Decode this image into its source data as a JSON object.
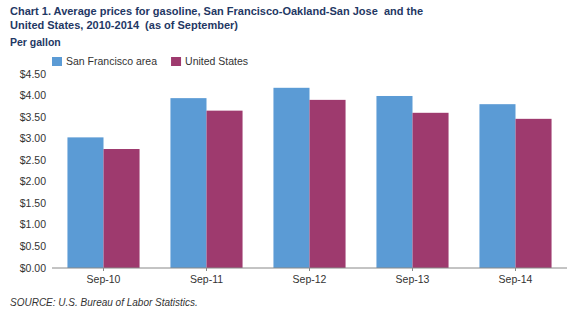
{
  "chart_data": {
    "type": "bar",
    "title": "Chart 1. Average prices for gasoline, San Francisco-Oakland-San Jose  and the",
    "subtitle": "United States, 2010-2014  (as of September)",
    "ylabel": "Per gallon",
    "source": "SOURCE: U.S. Bureau of Labor Statistics.",
    "categories": [
      "Sep-10",
      "Sep-11",
      "Sep-12",
      "Sep-13",
      "Sep-14"
    ],
    "series": [
      {
        "name": "San Francisco area",
        "color": "#5B9BD5",
        "values": [
          3.03,
          3.94,
          4.18,
          3.99,
          3.8
        ]
      },
      {
        "name": "United States",
        "color": "#9E3A6E",
        "values": [
          2.76,
          3.65,
          3.9,
          3.6,
          3.46
        ]
      }
    ],
    "ylim": [
      0,
      4.5
    ],
    "yticks": [
      {
        "value": 0.0,
        "label": "$0.00"
      },
      {
        "value": 0.5,
        "label": "$0.50"
      },
      {
        "value": 1.0,
        "label": "$1.00"
      },
      {
        "value": 1.5,
        "label": "$1.50"
      },
      {
        "value": 2.0,
        "label": "$2.00"
      },
      {
        "value": 2.5,
        "label": "$2.50"
      },
      {
        "value": 3.0,
        "label": "$3.00"
      },
      {
        "value": 3.5,
        "label": "$3.50"
      },
      {
        "value": 4.0,
        "label": "$4.00"
      },
      {
        "value": 4.5,
        "label": "$4.50"
      }
    ],
    "grid": false,
    "legend": "upper left"
  }
}
